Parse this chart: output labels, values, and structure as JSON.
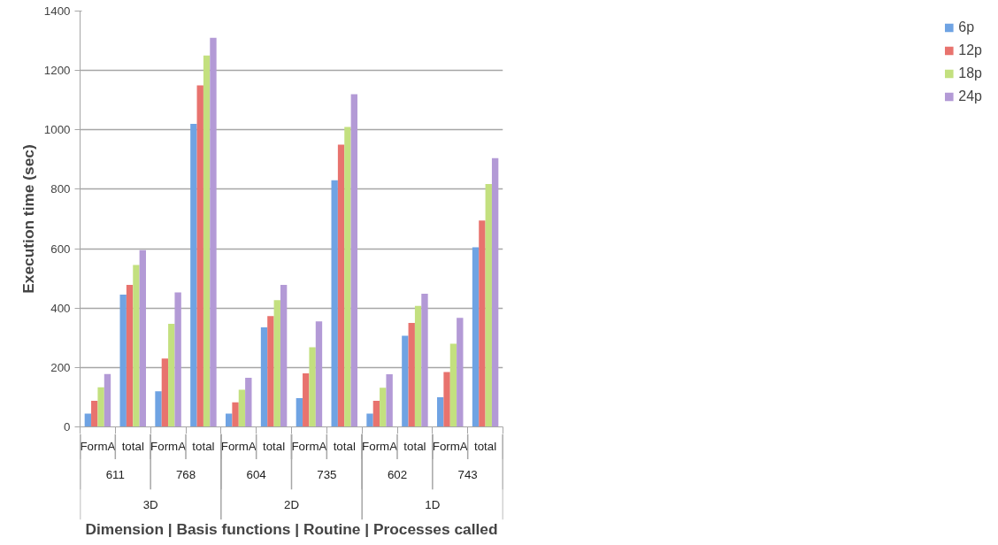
{
  "chart_data": {
    "type": "bar",
    "ylabel": "Execution time (sec)",
    "xlabel": "Dimension | Basis functions | Routine | Processes called",
    "categories": [
      "FormA",
      "total",
      "FormA",
      "total",
      "FormA",
      "total",
      "FormA",
      "total",
      "FormA",
      "total",
      "FormA",
      "total"
    ],
    "annotations": [
      "611",
      "768",
      "604",
      "735",
      "602",
      "743",
      "3D",
      "2D",
      "1D"
    ],
    "series": [
      {
        "name": "6p",
        "color": "#6fa3e3",
        "values": [
          45,
          445,
          120,
          1020,
          45,
          335,
          97,
          830,
          45,
          307,
          100,
          605
        ]
      },
      {
        "name": "12p",
        "color": "#e8736e",
        "values": [
          88,
          478,
          230,
          1150,
          83,
          373,
          180,
          950,
          88,
          350,
          185,
          695
        ]
      },
      {
        "name": "18p",
        "color": "#c3e07f",
        "values": [
          133,
          545,
          347,
          1250,
          125,
          427,
          268,
          1010,
          132,
          407,
          280,
          818
        ]
      },
      {
        "name": "24p",
        "color": "#b39ad6",
        "values": [
          178,
          595,
          453,
          1310,
          165,
          478,
          355,
          1120,
          177,
          448,
          367,
          905
        ]
      }
    ],
    "ylim": [
      0,
      1400
    ],
    "yticks": [
      0,
      200,
      400,
      600,
      800,
      1000,
      1200,
      1400
    ],
    "grid": "y",
    "legend": "right"
  }
}
